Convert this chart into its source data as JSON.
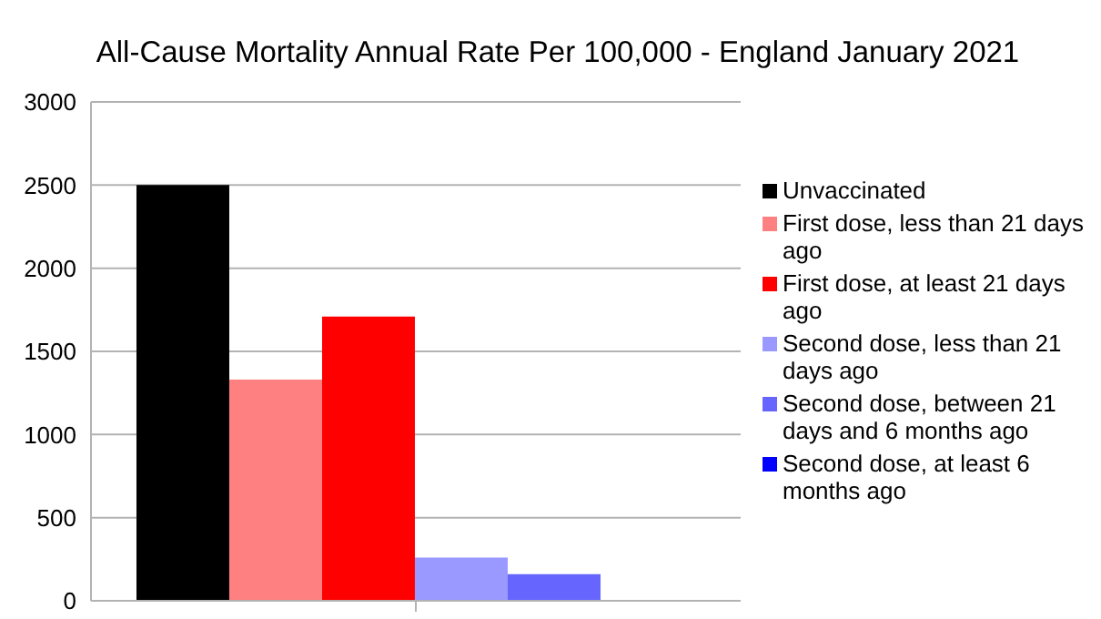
{
  "chart_data": {
    "type": "bar",
    "title": "All-Cause Mortality Annual Rate Per 100,000 - England January 2021",
    "categories": [
      null
    ],
    "series": [
      {
        "name": "Unvaccinated",
        "color": "#000000",
        "values": [
          2500
        ]
      },
      {
        "name": "First dose, less than 21 days ago",
        "color": "#ff8080",
        "values": [
          1330
        ]
      },
      {
        "name": "First dose, at least 21 days ago",
        "color": "#ff0000",
        "values": [
          1710
        ]
      },
      {
        "name": "Second dose, less than 21 days ago",
        "color": "#9999ff",
        "values": [
          260
        ]
      },
      {
        "name": "Second dose, between 21 days and 6 months ago",
        "color": "#6666ff",
        "values": [
          160
        ]
      },
      {
        "name": "Second dose, at least 6 months ago",
        "color": "#0000ff",
        "values": [
          0
        ]
      }
    ],
    "ylim": [
      0,
      3000
    ],
    "yticks": [
      0,
      500,
      1000,
      1500,
      2000,
      2500,
      3000
    ],
    "grid": "y",
    "legend": "right"
  }
}
